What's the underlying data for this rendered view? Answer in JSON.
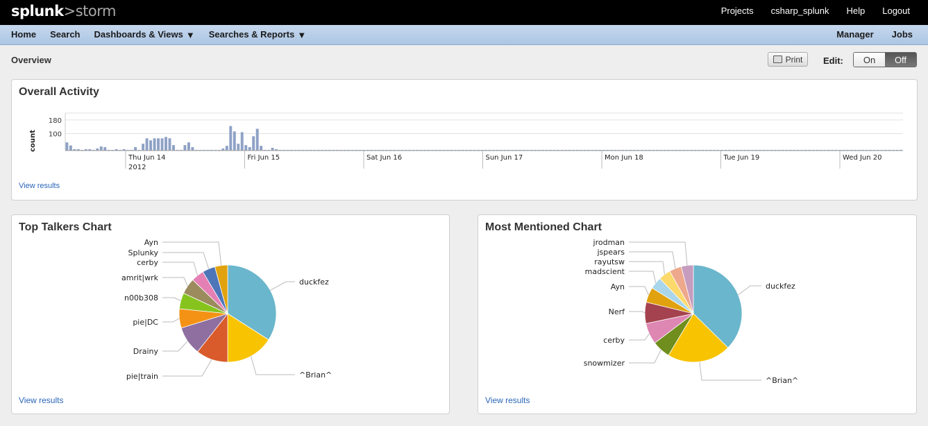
{
  "header": {
    "logo_a": "splunk",
    "logo_sep": ">",
    "logo_b": "storm",
    "links": [
      "Projects",
      "csharp_splunk",
      "Help",
      "Logout"
    ]
  },
  "nav": {
    "home": "Home",
    "search": "Search",
    "dashboards": "Dashboards & Views",
    "searches": "Searches & Reports",
    "manager": "Manager",
    "jobs": "Jobs"
  },
  "page": {
    "title": "Overview",
    "print_label": "Print",
    "edit_label": "Edit:",
    "edit_on": "On",
    "edit_off": "Off"
  },
  "panels": {
    "activity": {
      "title": "Overall Activity",
      "view_results": "View results"
    },
    "talkers": {
      "title": "Top Talkers Chart",
      "view_results": "View results"
    },
    "mentioned": {
      "title": "Most Mentioned Chart",
      "view_results": "View results"
    }
  },
  "colors": {
    "bar": "#8fa2c6",
    "link": "#2a66b8"
  },
  "chart_data": [
    {
      "type": "bar",
      "title": "Overall Activity",
      "ylabel": "count",
      "yticks": [
        "100",
        "180"
      ],
      "ylim": [
        0,
        220
      ],
      "x_tick_labels": [
        "Thu Jun 14",
        "Fri Jun 15",
        "Sat Jun 16",
        "Sun Jun 17",
        "Mon Jun 18",
        "Tue Jun 19",
        "Wed Jun 20"
      ],
      "x_sub_label": "2012",
      "values": [
        48,
        30,
        8,
        8,
        4,
        8,
        8,
        4,
        12,
        24,
        20,
        4,
        4,
        8,
        4,
        8,
        4,
        4,
        20,
        4,
        40,
        72,
        60,
        72,
        72,
        72,
        80,
        72,
        32,
        4,
        4,
        32,
        48,
        20,
        4,
        4,
        4,
        4,
        4,
        4,
        4,
        12,
        28,
        144,
        112,
        40,
        108,
        32,
        20,
        84,
        128,
        28,
        4,
        4,
        16,
        8,
        4,
        4,
        4,
        4,
        4,
        4,
        4,
        4,
        4,
        4,
        4,
        4,
        4,
        4,
        4,
        4,
        4,
        4,
        4,
        4,
        4,
        4,
        4,
        4,
        4,
        4,
        4,
        4,
        4,
        4,
        4,
        4,
        4,
        4,
        4,
        4,
        4,
        4,
        4,
        4,
        4,
        4,
        4,
        4,
        4,
        4,
        4,
        4,
        4,
        4,
        4,
        4,
        4,
        4,
        4,
        4,
        4,
        4,
        4,
        4,
        4,
        4,
        4,
        4,
        4,
        4,
        4,
        4,
        4,
        4,
        4,
        4,
        4,
        4,
        4,
        4,
        4,
        4,
        4,
        4,
        4,
        4,
        4,
        4,
        4,
        4,
        4,
        4,
        4,
        4,
        4,
        4,
        4,
        4,
        4,
        4,
        4,
        4,
        4,
        4,
        4,
        4,
        4,
        4,
        4,
        4,
        4,
        4,
        4,
        4,
        4,
        4,
        4,
        4,
        4,
        4,
        4,
        4,
        4,
        4,
        4,
        4,
        4,
        4,
        4,
        4,
        4,
        4,
        4,
        4,
        4,
        4,
        4,
        4,
        4,
        4,
        4,
        4,
        4,
        4,
        4,
        4,
        4,
        4,
        4,
        4,
        4,
        4,
        4,
        4,
        4,
        4,
        4,
        4,
        4,
        4,
        4,
        4,
        4,
        4,
        4,
        4,
        4,
        4
      ]
    },
    {
      "type": "pie",
      "title": "Top Talkers Chart",
      "labels": [
        "duckfez",
        "^Brian^",
        "pie|train",
        "Drainy",
        "pie|DC",
        "n00b308",
        "amrit|wrk",
        "cerby",
        "Splunky",
        "Ayn"
      ],
      "values": [
        32,
        15,
        10,
        9,
        6,
        5,
        5,
        4,
        4,
        4
      ],
      "colors": [
        "#6ab6cc",
        "#f8c300",
        "#d95a2a",
        "#8e6fa0",
        "#f39214",
        "#86c41d",
        "#9b8b5d",
        "#e480b4",
        "#4d76b8",
        "#e1a20f"
      ]
    },
    {
      "type": "pie",
      "title": "Most Mentioned Chart",
      "labels": [
        "duckfez",
        "^Brian^",
        "snowmizer",
        "cerby",
        "Nerf",
        "Ayn",
        "madscient",
        "rayutsw",
        "jspears",
        "jrodman"
      ],
      "values": [
        37,
        21,
        6,
        7,
        7,
        5,
        4,
        4,
        4,
        4
      ],
      "colors": [
        "#6ab6cc",
        "#f8c300",
        "#6f8e1d",
        "#de87b3",
        "#a4434f",
        "#e1a20f",
        "#a9d6ea",
        "#fbd96b",
        "#eea88b",
        "#c69cbf"
      ]
    }
  ]
}
